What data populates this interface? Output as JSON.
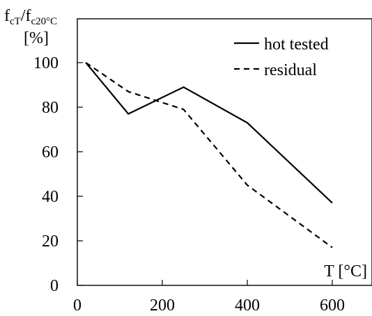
{
  "chart_data": {
    "type": "line",
    "ylabel_main": "f",
    "ylabel_sub1": "cT",
    "ylabel_slash": "/f",
    "ylabel_sub2": "c20°C",
    "ylabel_unit": "[%]",
    "xlabel": "T [°C]",
    "xlim": [
      0,
      700
    ],
    "ylim": [
      0,
      100
    ],
    "xticks": [
      0,
      200,
      400,
      600
    ],
    "yticks": [
      0,
      20,
      40,
      60,
      80,
      100
    ],
    "grid": false,
    "legend_position": "top-right",
    "series": [
      {
        "name": "hot tested",
        "style": "solid",
        "color": "#000000",
        "points": [
          [
            20,
            100
          ],
          [
            120,
            77
          ],
          [
            250,
            89
          ],
          [
            400,
            73
          ],
          [
            600,
            37
          ]
        ]
      },
      {
        "name": "residual",
        "style": "dashed",
        "color": "#000000",
        "points": [
          [
            20,
            100
          ],
          [
            120,
            87
          ],
          [
            250,
            79
          ],
          [
            400,
            45
          ],
          [
            600,
            17
          ]
        ]
      }
    ]
  }
}
